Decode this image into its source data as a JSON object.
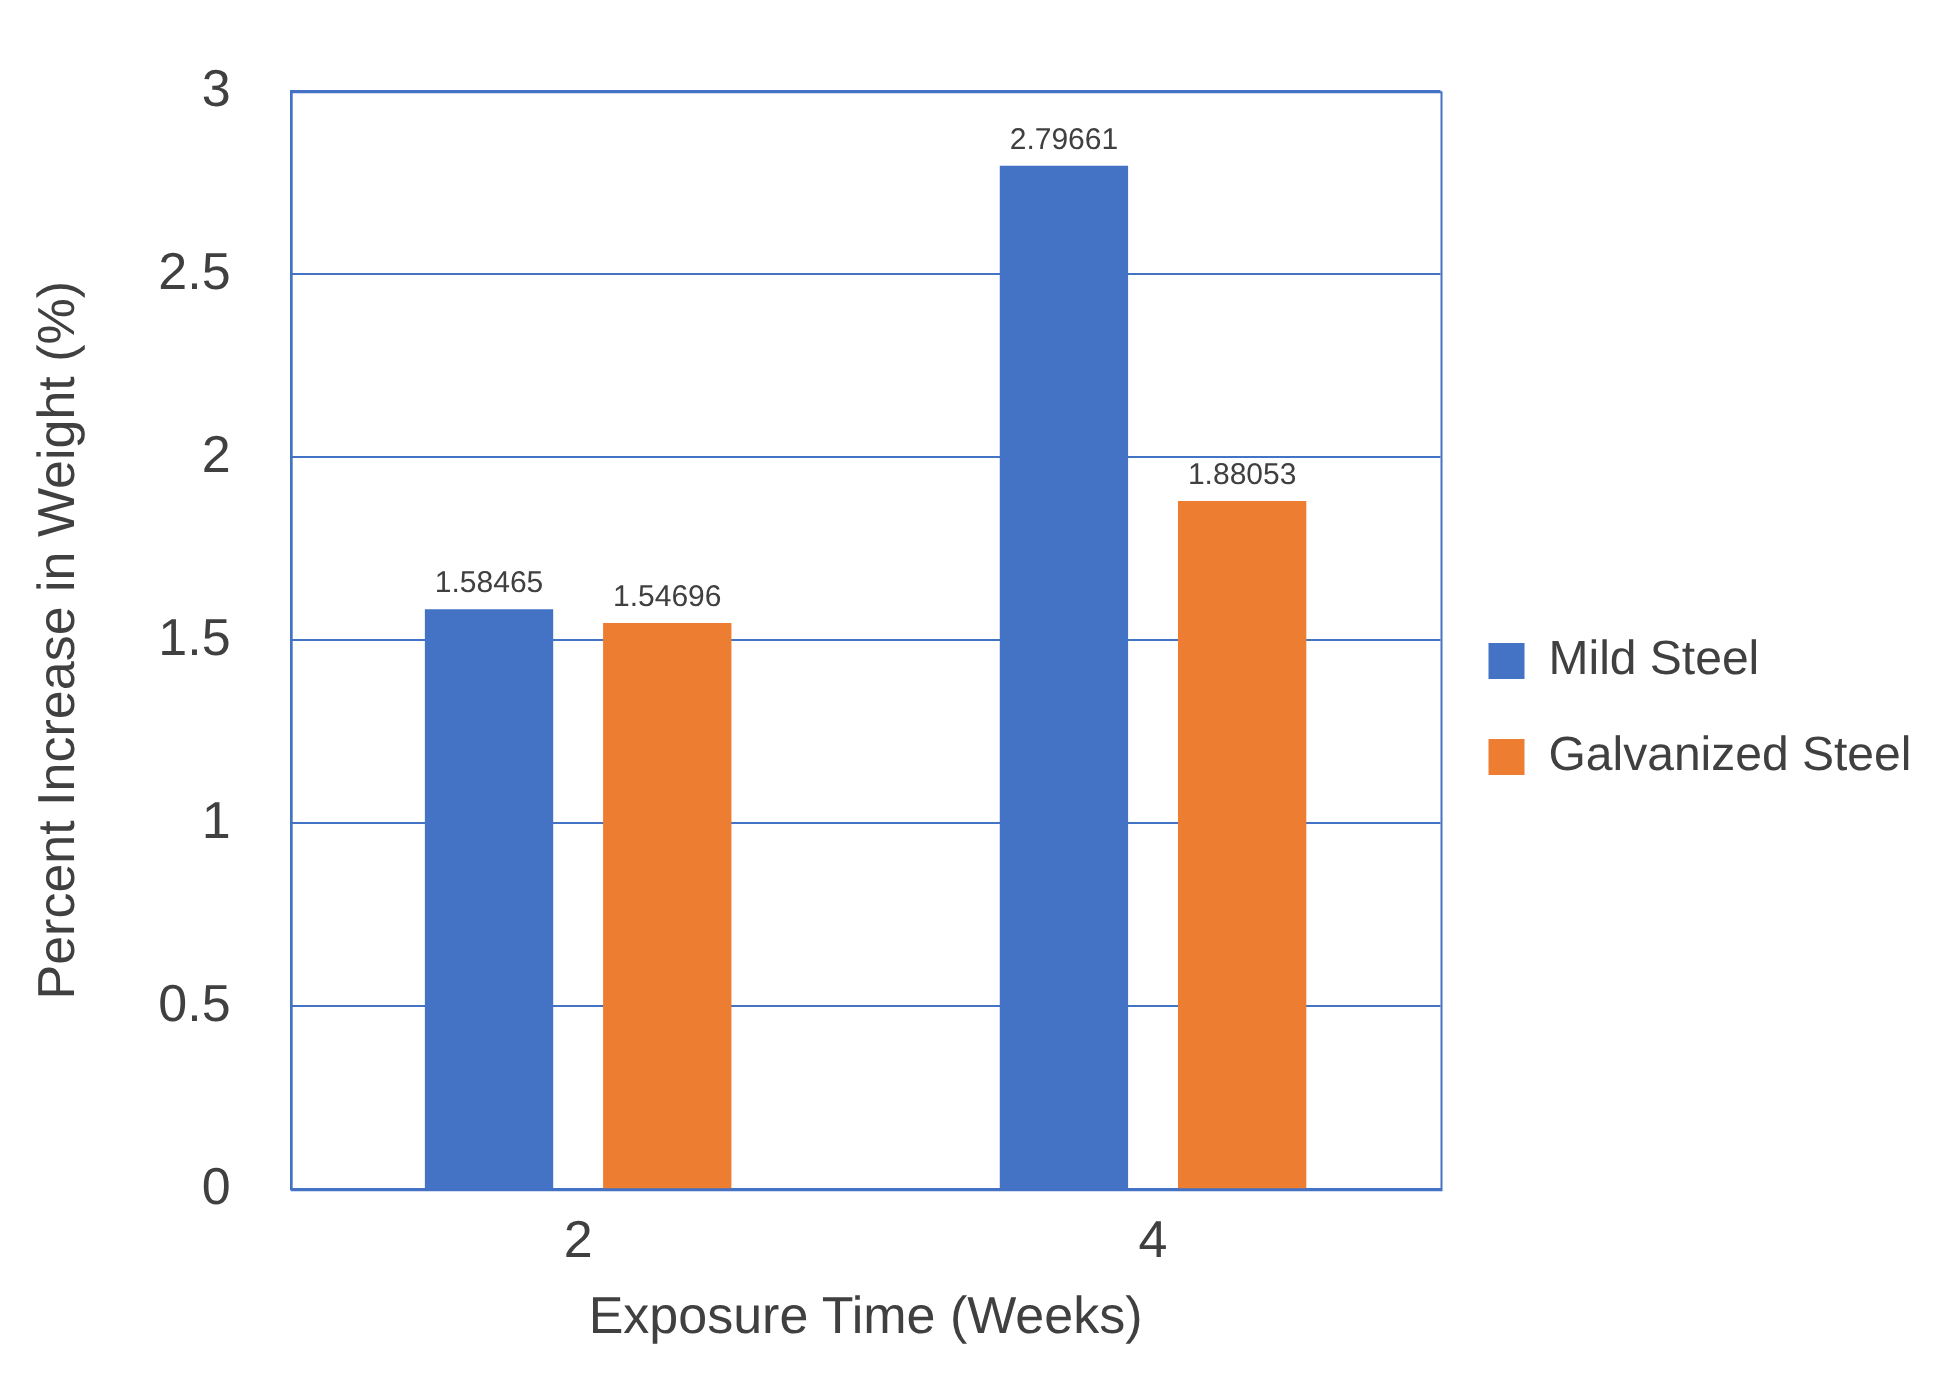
{
  "chart_data": {
    "type": "bar",
    "xlabel": "Exposure Time (Weeks)",
    "ylabel": "Percent Increase in Weight (%)",
    "categories": [
      "2",
      "4"
    ],
    "series": [
      {
        "name": "Mild Steel",
        "color": "#4472c4",
        "values": [
          1.58465,
          2.79661
        ]
      },
      {
        "name": "Galvanized Steel",
        "color": "#ed7d31",
        "values": [
          1.54696,
          1.88053
        ]
      }
    ],
    "ylim": [
      0,
      3
    ],
    "yticks": [
      0,
      0.5,
      1,
      1.5,
      2,
      2.5,
      3
    ],
    "grid": "y",
    "legend": "right",
    "data_labels": true
  }
}
